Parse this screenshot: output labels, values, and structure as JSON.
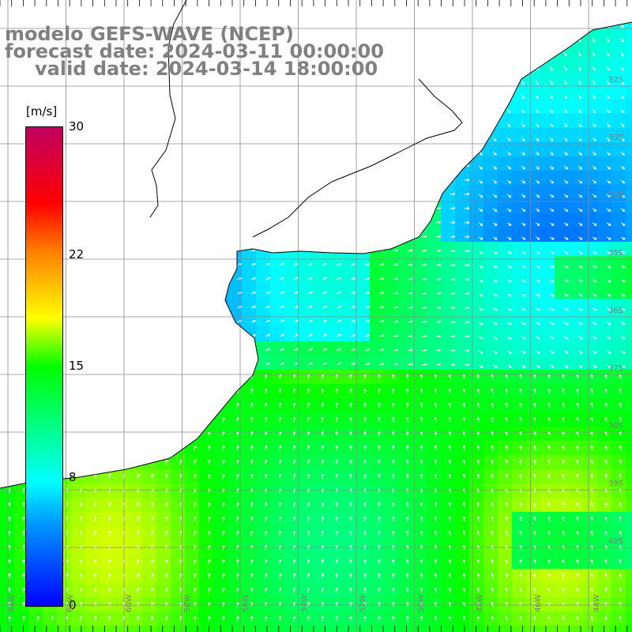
{
  "title": {
    "model": "modelo GEFS-WAVE (NCEP)",
    "forecast": "forecast date: 2024-03-11 00:00:00",
    "valid": "valid date: 2024-03-14 18:00:00"
  },
  "colorbar": {
    "unit": "[m/s]",
    "ticks": [
      "30",
      "22",
      "15",
      "8",
      "0"
    ],
    "tick_values": [
      30,
      22,
      15,
      8,
      0
    ],
    "min": 0,
    "max": 30
  },
  "lat_labels": [
    "32S",
    "33S",
    "34S",
    "35S",
    "36S",
    "37S",
    "38S",
    "39S",
    "40S"
  ],
  "lon_labels": [
    "64W",
    "62W",
    "60W",
    "58W",
    "56W",
    "54W",
    "52W",
    "50W",
    "48W",
    "46W",
    "44W"
  ],
  "colors": {
    "land": "#ffffff",
    "grid": "#8c8c8c",
    "coast": "#000000",
    "arrow": "#ffffff",
    "title": "#808080"
  }
}
